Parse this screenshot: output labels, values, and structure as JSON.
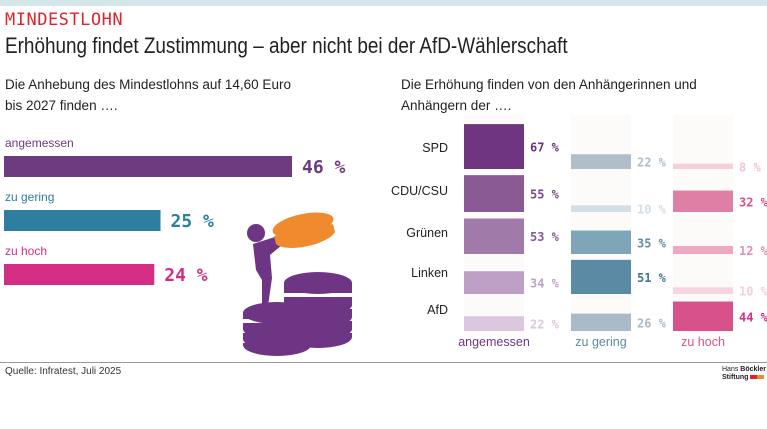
{
  "header": {
    "kicker": "MINDESTLOHN",
    "title": "Erhöhung findet Zustimmung – aber nicht bei der AfD-Wählerschaft"
  },
  "left": {
    "subtitle_line1": "Die Anhebung des Mindestlohns auf 14,60 Euro",
    "subtitle_line2": "bis 2027 finden …."
  },
  "right": {
    "subtitle_line1": "Die Erhöhung finden von den Anhängerinnen und",
    "subtitle_line2": "Anhängern der  …."
  },
  "footer": {
    "source": "Quelle: Infratest, Juli 2025",
    "logo_line1a": "Hans",
    "logo_line1b": "Böckler",
    "logo_line2": "Stiftung"
  },
  "colors": {
    "kicker": "#e3232b",
    "angemessen": "#6e3a80",
    "zu_gering": "#2e7ea0",
    "zu_hoch": "#d42e84",
    "illustration_purple": "#6e3585",
    "illustration_orange": "#ef8a2e"
  },
  "illustration": {
    "icon": "person-stacking-coins-icon"
  },
  "chart_data": [
    {
      "type": "bar",
      "orientation": "horizontal",
      "categories": [
        "angemessen",
        "zu gering",
        "zu hoch"
      ],
      "values": [
        46,
        25,
        24
      ],
      "value_labels": [
        "46 %",
        "25 %",
        "24 %"
      ],
      "colors": [
        "#6e3a80",
        "#2e7ea0",
        "#d42e84"
      ]
    },
    {
      "type": "bar",
      "orientation": "vertical-thickness",
      "categories": [
        "SPD",
        "CDU/CSU",
        "Grünen",
        "Linken",
        "AfD"
      ],
      "series": [
        {
          "name": "angemessen",
          "values": [
            67,
            55,
            53,
            34,
            22
          ],
          "labels": [
            "67 %",
            "55 %",
            "53 %",
            "34 %",
            "22 %"
          ],
          "colors": [
            "#6f3580",
            "#8a5a94",
            "#a07aa8",
            "#bea0c4",
            "#dcc8de"
          ],
          "label_colors": [
            "#6f3580",
            "#7a4a88",
            "#8a5a94",
            "#bea0c4",
            "#dcc8de"
          ]
        },
        {
          "name": "zu gering",
          "values": [
            22,
            10,
            35,
            51,
            26
          ],
          "labels": [
            "22 %",
            "10 %",
            "35 %",
            "51 %",
            "26 %"
          ],
          "colors": [
            "#aebecb",
            "#d2dfe4",
            "#7fa6b8",
            "#5a8aa4",
            "#a9bbc9"
          ],
          "label_colors": [
            "#aebecb",
            "#d2dfe4",
            "#5f8ea6",
            "#3f7894",
            "#a9bbc9"
          ]
        },
        {
          "name": "zu hoch",
          "values": [
            8,
            32,
            12,
            10,
            44
          ],
          "labels": [
            "8 %",
            "32 %",
            "12 %",
            "10 %",
            "44 %"
          ],
          "colors": [
            "#f5d0dc",
            "#e07fa5",
            "#eda8c2",
            "#f7d5e0",
            "#d9518a"
          ],
          "label_colors": [
            "#f3c4d4",
            "#d9518a",
            "#e58fb2",
            "#f5cfdc",
            "#d42e84"
          ]
        }
      ]
    }
  ]
}
